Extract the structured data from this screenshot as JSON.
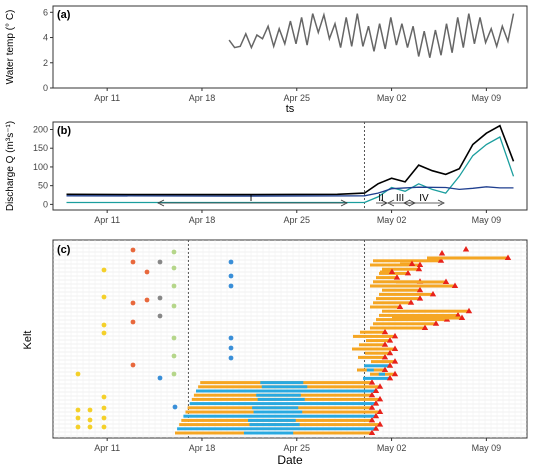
{
  "chart_data": [
    {
      "panel_label": "(a)",
      "type": "line",
      "title": "",
      "ylabel": "Water temp (° C)",
      "xlabel": "ts",
      "x_ticks": [
        "Apr 11",
        "Apr 18",
        "Apr 25",
        "May 02",
        "May 09"
      ],
      "y_ticks": [
        0,
        2,
        4,
        6
      ],
      "xlim": [
        "2019-04-07",
        "2019-05-12"
      ],
      "ylim": [
        0,
        6.5
      ],
      "grid": false,
      "series": [
        {
          "color": "#666666",
          "x_start": "2019-04-20",
          "x_end": "2019-05-11",
          "values": [
            3.8,
            3.2,
            3.3,
            4.3,
            3.2,
            4.2,
            3.9,
            4.9,
            3.3,
            4.7,
            3.5,
            5.3,
            3.5,
            5.6,
            3.4,
            5.9,
            4.4,
            5.8,
            3.9,
            5.1,
            3.2,
            5.6,
            3.3,
            5.9,
            3.3,
            4.9,
            2.9,
            5.1,
            3.1,
            5.6,
            3.4,
            5.1,
            3.2,
            4.9,
            2.5,
            4.5,
            2.4,
            4.6,
            2.6,
            5.1,
            2.8,
            5.6,
            3.2,
            5.9,
            3.5,
            5.6,
            3.6,
            4.7,
            3.3,
            4.9,
            3.7,
            5.9
          ]
        }
      ]
    },
    {
      "panel_label": "(b)",
      "type": "line",
      "title": "",
      "ylabel": "Discharge Q (m³s⁻¹)",
      "x_ticks": [
        "Apr 11",
        "Apr 18",
        "Apr 25",
        "May 02",
        "May 09"
      ],
      "y_ticks": [
        0,
        50,
        100,
        150,
        200
      ],
      "xlim": [
        "2019-04-07",
        "2019-05-12"
      ],
      "ylim": [
        -15,
        220
      ],
      "grid": false,
      "vline_date": "2019-04-30",
      "series": [
        {
          "color": "#000000",
          "x": [
            "2019-04-08",
            "2019-04-14",
            "2019-04-21",
            "2019-04-28",
            "2019-04-30",
            "2019-05-01",
            "2019-05-02",
            "2019-05-03",
            "2019-05-04",
            "2019-05-05",
            "2019-05-06",
            "2019-05-07",
            "2019-05-08",
            "2019-05-09",
            "2019-05-10",
            "2019-05-11"
          ],
          "values": [
            27,
            26,
            26,
            27,
            30,
            55,
            70,
            60,
            105,
            90,
            80,
            95,
            160,
            190,
            210,
            115
          ]
        },
        {
          "color": "#1b9e9e",
          "x": [
            "2019-04-08",
            "2019-04-30",
            "2019-05-01",
            "2019-05-02",
            "2019-05-03",
            "2019-05-04",
            "2019-05-05",
            "2019-05-06",
            "2019-05-07",
            "2019-05-08",
            "2019-05-09",
            "2019-05-10",
            "2019-05-11"
          ],
          "values": [
            5,
            5,
            20,
            45,
            35,
            55,
            40,
            30,
            75,
            130,
            160,
            180,
            75
          ]
        },
        {
          "color": "#1f3f8f",
          "x": [
            "2019-04-08",
            "2019-04-20",
            "2019-04-30",
            "2019-05-01",
            "2019-05-02",
            "2019-05-04",
            "2019-05-06",
            "2019-05-07",
            "2019-05-08",
            "2019-05-09",
            "2019-05-10",
            "2019-05-11"
          ],
          "values": [
            23,
            22,
            23,
            30,
            42,
            46,
            45,
            40,
            43,
            47,
            44,
            44
          ]
        }
      ],
      "annotations": [
        "I",
        "II",
        "III",
        "IV"
      ]
    },
    {
      "panel_label": "(c)",
      "type": "scatter",
      "title": "",
      "ylabel": "Kelt",
      "xlabel": "Date",
      "x_ticks": [
        "Apr 11",
        "Apr 18",
        "Apr 25",
        "May 02",
        "May 09"
      ],
      "xlim": [
        "2019-04-07",
        "2019-05-12"
      ],
      "grid": true,
      "vline_dates": [
        "2019-04-17",
        "2019-04-30"
      ],
      "colors": {
        "orange_bar": "#f5a623",
        "blue_bar": "#29a9e0",
        "red_marker": "#e8221b",
        "yellow_dot": "#f4d02a",
        "orange_dot": "#e8683c",
        "light_green_dot": "#b5d68a",
        "blue_dot": "#3a8fd8",
        "grey_dot": "#888888"
      }
    }
  ]
}
